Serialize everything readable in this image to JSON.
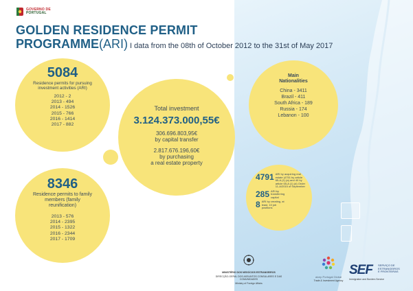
{
  "header": {
    "gov_line1": "GOVERNO DE",
    "gov_line2": "PORTUGAL",
    "title_line1": "GOLDEN RESIDENCE PERMIT",
    "title_line2_bold": "PROGRAMME",
    "title_line2_paren": "(ARI)",
    "title_range": " I data from the 08th of October 2012 to the 31st of May 2017"
  },
  "investment_permits": {
    "number": "5084",
    "desc": "Residence permits for pursuing investment activities (ARI)",
    "years": [
      "2012 - 2",
      "2013 - 494",
      "2014 - 1526",
      "2015 - 766",
      "2016 - 1414",
      "2017 - 882"
    ]
  },
  "family_permits": {
    "number": "8346",
    "desc": "Residence permits to family members (family reunification)",
    "years": [
      "2013 - 576",
      "2014 - 2395",
      "2015 - 1322",
      "2016 - 2344",
      "2017 - 1709"
    ]
  },
  "total_investment": {
    "label": "Total investment",
    "total": "3.124.373.000,55€",
    "capital_amount": "306.696.803,95€",
    "capital_desc": "by capital transfer",
    "real_estate_amount": "2.817.676.196,60€",
    "real_estate_desc1": "by purchasing",
    "real_estate_desc2": "a real estate property"
  },
  "nationalities": {
    "header1": "Main",
    "header2": "Nationalities",
    "items": [
      "China - 3411",
      "Brazil - 411",
      "South Africa - 189",
      "Russia - 174",
      "Lebanon - 100"
    ]
  },
  "breakdown": {
    "items": [
      {
        "number": "4791",
        "text": "ARI by acquiring real estate (4751 by article 65-A (1) (a) and 40 by article 65-A (1) (d) Order 11-A/2015 of September"
      },
      {
        "number": "285",
        "text": "ARI by transferring capital"
      },
      {
        "number": "8",
        "text": "ARI by creating, at least, 10 job positions"
      }
    ]
  },
  "footer": {
    "mne_line1": "MINISTÉRIO DOS NEGÓCIOS ESTRANGEIROS",
    "mne_line2": "DIRECÇÃO-GERAL DOS ASSUNTOS CONSULARES E DAS COMUNIDADES",
    "mne_caption": "Ministry of Foreign Affairs",
    "aicep_name": "aicep Portugal Global",
    "aicep_caption": "Trade & Investment Agency",
    "sef_mark": "SEF",
    "sef_side1": "SERVIÇO DE",
    "sef_side2": "ESTRANGEIROS",
    "sef_side3": "E FRONTEIRAS",
    "sef_caption": "Immigration and Borders Service"
  },
  "colors": {
    "title_blue": "#1f5f86",
    "circle_yellow": "#f8e47a",
    "map_blue": "#b7d8ee"
  }
}
